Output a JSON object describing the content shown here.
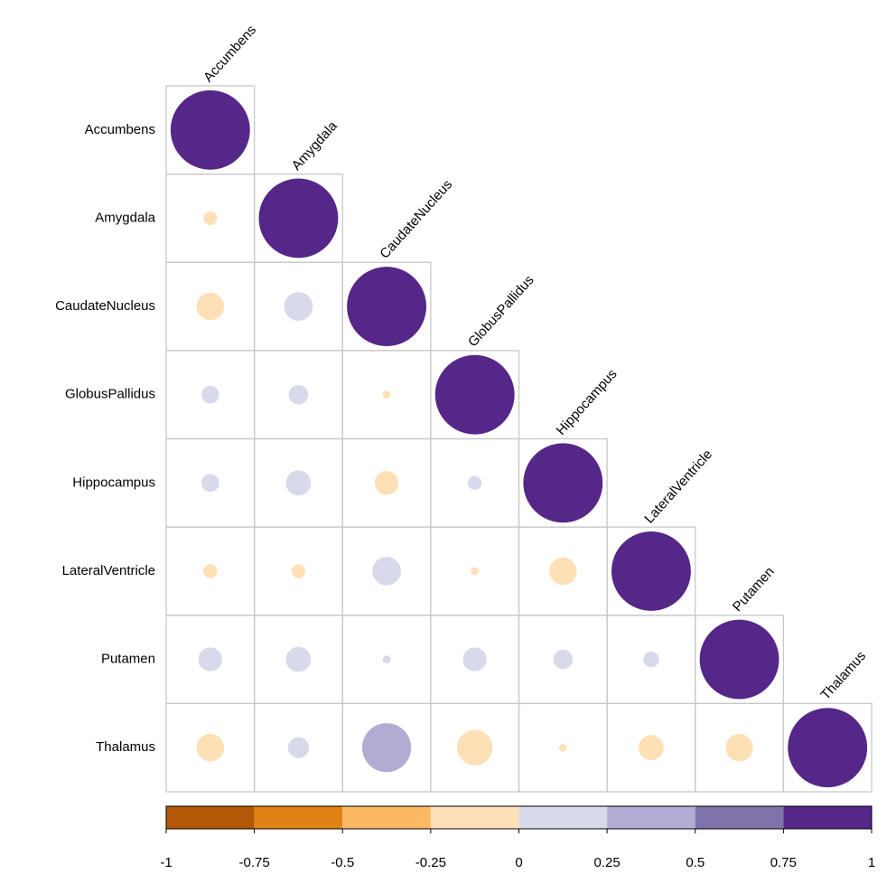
{
  "chart_data": {
    "type": "corrplot",
    "labels": [
      "Accumbens",
      "Amygdala",
      "CaudateNucleus",
      "GlobusPallidus",
      "Hippocampus",
      "LateralVentricle",
      "Putamen",
      "Thalamus"
    ],
    "matrix": [
      [
        1
      ],
      [
        -0.03,
        1
      ],
      [
        -0.12,
        0.13,
        1
      ],
      [
        0.05,
        0.06,
        -0.01,
        1
      ],
      [
        0.05,
        0.1,
        -0.09,
        0.03,
        1
      ],
      [
        -0.03,
        -0.03,
        0.13,
        -0.01,
        -0.12,
        1
      ],
      [
        0.09,
        0.1,
        0.01,
        0.09,
        0.06,
        0.04,
        1
      ],
      [
        -0.12,
        0.07,
        0.38,
        -0.2,
        -0.01,
        -0.1,
        -0.12,
        1
      ]
    ],
    "colors": [
      "#b35806",
      "#e08214",
      "#fdb863",
      "#fee0b6",
      "#d8daeb",
      "#b2abd2",
      "#8073ac",
      "#542788"
    ],
    "colorbar_ticks": [
      -1,
      -0.75,
      -0.5,
      -0.25,
      0,
      0.25,
      0.5,
      0.75,
      1
    ]
  }
}
